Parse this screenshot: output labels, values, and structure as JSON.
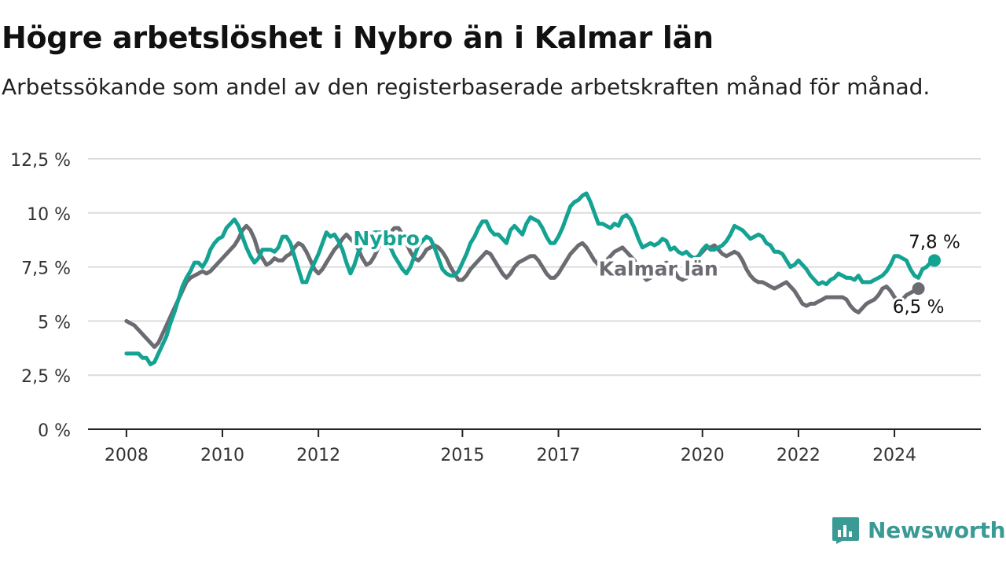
{
  "header": {
    "title": "Högre arbetslöshet i Nybro än i Kalmar län",
    "subtitle": "Arbetssökande som andel av den registerbaserade arbetskraften månad för månad."
  },
  "brand": {
    "name": "Newsworthy",
    "icon": "newsworthy-logo-icon",
    "color": "#3a9a95"
  },
  "chart_data": {
    "type": "line",
    "x_start": "2008-01",
    "x_interval": "month",
    "x_ticks": [
      {
        "label": "2008",
        "x": 2008.0
      },
      {
        "label": "2010",
        "x": 2010.0
      },
      {
        "label": "2012",
        "x": 2012.0
      },
      {
        "label": "2015",
        "x": 2015.0
      },
      {
        "label": "2017",
        "x": 2017.0
      },
      {
        "label": "2020",
        "x": 2020.0
      },
      {
        "label": "2022",
        "x": 2022.0
      },
      {
        "label": "2024",
        "x": 2024.0
      }
    ],
    "xlim": [
      2007.2,
      2025.8
    ],
    "ylim": [
      0,
      12.5
    ],
    "y_ticks": [
      {
        "label": "0 %",
        "value": 0
      },
      {
        "label": "2,5 %",
        "value": 2.5
      },
      {
        "label": "5 %",
        "value": 5
      },
      {
        "label": "7,5 %",
        "value": 7.5
      },
      {
        "label": "10 %",
        "value": 10
      },
      {
        "label": "12,5 %",
        "value": 12.5
      }
    ],
    "grid": true,
    "series": [
      {
        "name": "Kalmar län",
        "color": "#6b6b72",
        "end_label": "6,5 %",
        "label_at": "2019-02",
        "values": [
          5.0,
          4.9,
          4.8,
          4.6,
          4.4,
          4.2,
          4.0,
          3.8,
          4.0,
          4.4,
          4.8,
          5.2,
          5.6,
          6.0,
          6.4,
          6.8,
          7.0,
          7.1,
          7.2,
          7.3,
          7.2,
          7.3,
          7.5,
          7.7,
          7.9,
          8.1,
          8.3,
          8.5,
          8.8,
          9.2,
          9.4,
          9.2,
          8.8,
          8.2,
          7.9,
          7.6,
          7.7,
          7.9,
          7.8,
          7.8,
          8.0,
          8.1,
          8.4,
          8.6,
          8.5,
          8.2,
          7.8,
          7.4,
          7.2,
          7.4,
          7.7,
          8.0,
          8.3,
          8.5,
          8.8,
          9.0,
          8.8,
          8.6,
          8.3,
          7.9,
          7.6,
          7.7,
          8.0,
          8.4,
          8.7,
          8.9,
          9.1,
          9.3,
          9.3,
          9.0,
          8.6,
          8.2,
          7.9,
          7.8,
          8.0,
          8.3,
          8.4,
          8.5,
          8.4,
          8.2,
          7.9,
          7.5,
          7.2,
          6.9,
          6.9,
          7.1,
          7.4,
          7.6,
          7.8,
          8.0,
          8.2,
          8.1,
          7.8,
          7.5,
          7.2,
          7.0,
          7.2,
          7.5,
          7.7,
          7.8,
          7.9,
          8.0,
          8.0,
          7.8,
          7.5,
          7.2,
          7.0,
          7.0,
          7.2,
          7.5,
          7.8,
          8.1,
          8.3,
          8.5,
          8.6,
          8.4,
          8.1,
          7.8,
          7.6,
          7.7,
          7.8,
          8.0,
          8.2,
          8.3,
          8.4,
          8.2,
          8.0,
          7.8,
          7.4,
          7.1,
          6.9,
          7.0,
          7.2,
          7.4,
          7.6,
          7.7,
          7.6,
          7.3,
          7.0,
          6.9,
          7.0,
          7.4,
          7.8,
          8.0,
          8.2,
          8.4,
          8.4,
          8.5,
          8.3,
          8.1,
          8.0,
          8.1,
          8.2,
          8.1,
          7.8,
          7.4,
          7.1,
          6.9,
          6.8,
          6.8,
          6.7,
          6.6,
          6.5,
          6.6,
          6.7,
          6.8,
          6.6,
          6.4,
          6.1,
          5.8,
          5.7,
          5.8,
          5.8,
          5.9,
          6.0,
          6.1,
          6.1,
          6.1,
          6.1,
          6.1,
          6.0,
          5.7,
          5.5,
          5.4,
          5.6,
          5.8,
          5.9,
          6.0,
          6.2,
          6.5,
          6.6,
          6.4,
          6.1,
          5.9,
          6.0,
          6.2,
          6.3,
          6.4,
          6.5
        ]
      },
      {
        "name": "Nybro",
        "color": "#14a393",
        "end_label": "7,8 %",
        "label_at": "2013-06",
        "values": [
          3.5,
          3.5,
          3.5,
          3.5,
          3.3,
          3.3,
          3.0,
          3.1,
          3.5,
          3.9,
          4.3,
          4.9,
          5.4,
          6.0,
          6.6,
          7.0,
          7.3,
          7.7,
          7.7,
          7.5,
          7.8,
          8.3,
          8.6,
          8.8,
          8.9,
          9.3,
          9.5,
          9.7,
          9.4,
          8.9,
          8.4,
          8.0,
          7.7,
          7.9,
          8.3,
          8.3,
          8.3,
          8.2,
          8.4,
          8.9,
          8.9,
          8.6,
          8.0,
          7.4,
          6.8,
          6.8,
          7.3,
          7.7,
          8.1,
          8.6,
          9.1,
          8.9,
          9.0,
          8.7,
          8.3,
          7.7,
          7.2,
          7.6,
          8.2,
          8.5,
          8.7,
          8.9,
          9.1,
          9.1,
          9.1,
          8.8,
          8.4,
          8.0,
          7.7,
          7.4,
          7.2,
          7.5,
          8.0,
          8.5,
          8.7,
          8.9,
          8.8,
          8.4,
          7.9,
          7.4,
          7.2,
          7.1,
          7.1,
          7.3,
          7.7,
          8.1,
          8.6,
          8.9,
          9.3,
          9.6,
          9.6,
          9.2,
          9.0,
          9.0,
          8.8,
          8.6,
          9.2,
          9.4,
          9.2,
          9.0,
          9.5,
          9.8,
          9.7,
          9.6,
          9.3,
          8.9,
          8.6,
          8.6,
          8.9,
          9.3,
          9.8,
          10.3,
          10.5,
          10.6,
          10.8,
          10.9,
          10.5,
          10.0,
          9.5,
          9.5,
          9.4,
          9.3,
          9.5,
          9.4,
          9.8,
          9.9,
          9.7,
          9.3,
          8.8,
          8.4,
          8.5,
          8.6,
          8.5,
          8.6,
          8.8,
          8.7,
          8.3,
          8.4,
          8.2,
          8.1,
          8.2,
          8.0,
          7.9,
          8.0,
          8.3,
          8.5,
          8.3,
          8.3,
          8.4,
          8.5,
          8.7,
          9.0,
          9.4,
          9.3,
          9.2,
          9.0,
          8.8,
          8.9,
          9.0,
          8.9,
          8.6,
          8.5,
          8.2,
          8.2,
          8.1,
          7.8,
          7.5,
          7.6,
          7.8,
          7.6,
          7.4,
          7.1,
          6.9,
          6.7,
          6.8,
          6.7,
          6.9,
          7.0,
          7.2,
          7.1,
          7.0,
          7.0,
          6.9,
          7.1,
          6.8,
          6.8,
          6.8,
          6.9,
          7.0,
          7.1,
          7.3,
          7.6,
          8.0,
          8.0,
          7.9,
          7.8,
          7.4,
          7.1,
          7.0,
          7.4,
          7.5,
          7.7,
          7.8
        ]
      }
    ]
  }
}
